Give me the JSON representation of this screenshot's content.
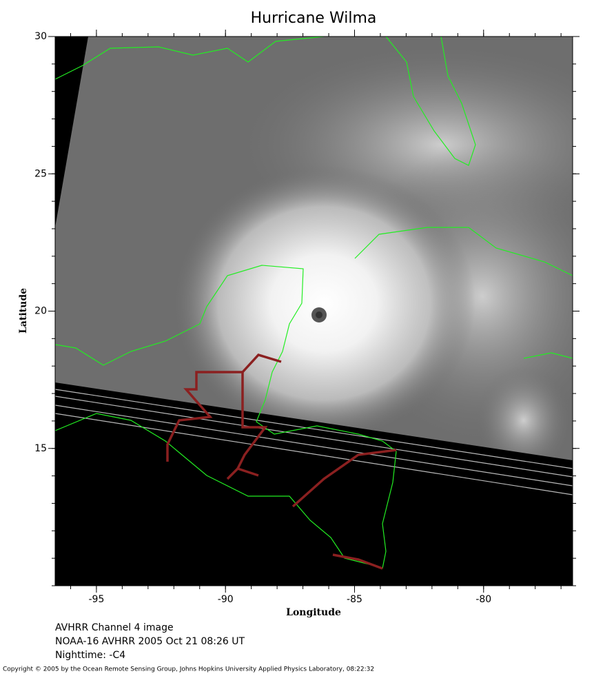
{
  "map": {
    "title": "Hurricane Wilma",
    "x_label": "Longitude",
    "y_label": "Latitude",
    "xlim": [
      -96.6,
      -76.55
    ],
    "ylim": [
      10,
      30
    ],
    "xticks": [
      -95,
      -90,
      -85,
      -80
    ],
    "yticks": [
      15,
      20,
      25,
      30
    ],
    "captions": [
      "AVHRR Channel 4 image",
      "NOAA-16 AVHRR 2005 Oct 21 08:26 UT",
      "Nighttime: -C4"
    ],
    "copyright": "Copyright © 2005 by the Ocean Remote Sensing Group, Johns Hopkins University Applied Physics Laboratory, 08:22:32"
  }
}
